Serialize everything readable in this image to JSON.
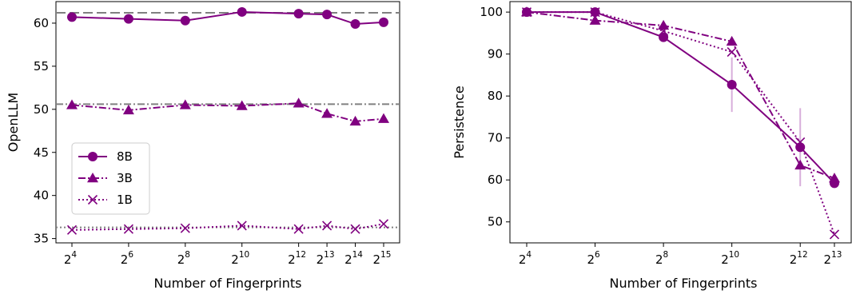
{
  "chart_data": [
    {
      "type": "line",
      "xlabel": "Number of Fingerprints",
      "ylabel": "OpenLLM",
      "x_scale": "log2",
      "x": [
        16,
        64,
        256,
        1024,
        4096,
        8192,
        16384,
        32768
      ],
      "x_tick_labels": [
        {
          "base": "2",
          "exp": "4"
        },
        {
          "base": "2",
          "exp": "6"
        },
        {
          "base": "2",
          "exp": "8"
        },
        {
          "base": "2",
          "exp": "10"
        },
        {
          "base": "2",
          "exp": "12"
        },
        {
          "base": "2",
          "exp": "13"
        },
        {
          "base": "2",
          "exp": "14"
        },
        {
          "base": "2",
          "exp": "15"
        }
      ],
      "ylim": [
        34.5,
        62.5
      ],
      "y_ticks": [
        35,
        40,
        45,
        50,
        55,
        60
      ],
      "color": "#800080",
      "series": [
        {
          "name": "8B",
          "marker": "circle",
          "linestyle": "solid",
          "values": [
            60.7,
            60.5,
            60.3,
            61.3,
            61.1,
            61.0,
            59.9,
            60.1
          ],
          "baseline": 61.2
        },
        {
          "name": "3B",
          "marker": "triangle",
          "linestyle": "dashdot",
          "values": [
            50.5,
            49.9,
            50.5,
            50.4,
            50.7,
            49.5,
            48.6,
            48.9
          ],
          "baseline": 50.6
        },
        {
          "name": "1B",
          "marker": "x",
          "linestyle": "dotted",
          "values": [
            36.0,
            36.1,
            36.2,
            36.5,
            36.1,
            36.5,
            36.1,
            36.7
          ],
          "baseline": 36.3
        }
      ],
      "legend": {
        "placement": "center-left",
        "entries": [
          "8B",
          "3B",
          "1B"
        ]
      }
    },
    {
      "type": "line",
      "xlabel": "Number of Fingerprints",
      "ylabel": "Persistence",
      "x_scale": "log2",
      "x": [
        16,
        64,
        256,
        1024,
        4096,
        8192
      ],
      "x_tick_labels": [
        {
          "base": "2",
          "exp": "4"
        },
        {
          "base": "2",
          "exp": "6"
        },
        {
          "base": "2",
          "exp": "8"
        },
        {
          "base": "2",
          "exp": "10"
        },
        {
          "base": "2",
          "exp": "12"
        },
        {
          "base": "2",
          "exp": "13"
        }
      ],
      "ylim": [
        45,
        102.5
      ],
      "y_ticks": [
        50,
        60,
        70,
        80,
        90,
        100
      ],
      "color": "#800080",
      "series": [
        {
          "name": "8B",
          "marker": "circle",
          "linestyle": "solid",
          "values": [
            100.0,
            100.0,
            94.0,
            82.7,
            67.8,
            59.2
          ],
          "error": [
            0,
            0,
            0,
            6.5,
            9.3,
            0
          ]
        },
        {
          "name": "3B",
          "marker": "triangle",
          "linestyle": "dashdot",
          "values": [
            100.0,
            98.0,
            96.8,
            93.0,
            63.5,
            60.4
          ],
          "error": [
            0,
            0,
            0,
            0,
            0,
            0
          ]
        },
        {
          "name": "1B",
          "marker": "x",
          "linestyle": "dotted",
          "values": [
            100.0,
            100.0,
            95.5,
            90.5,
            69.0,
            47.0
          ],
          "error": [
            0,
            0,
            0,
            0,
            0,
            0
          ]
        }
      ]
    }
  ]
}
